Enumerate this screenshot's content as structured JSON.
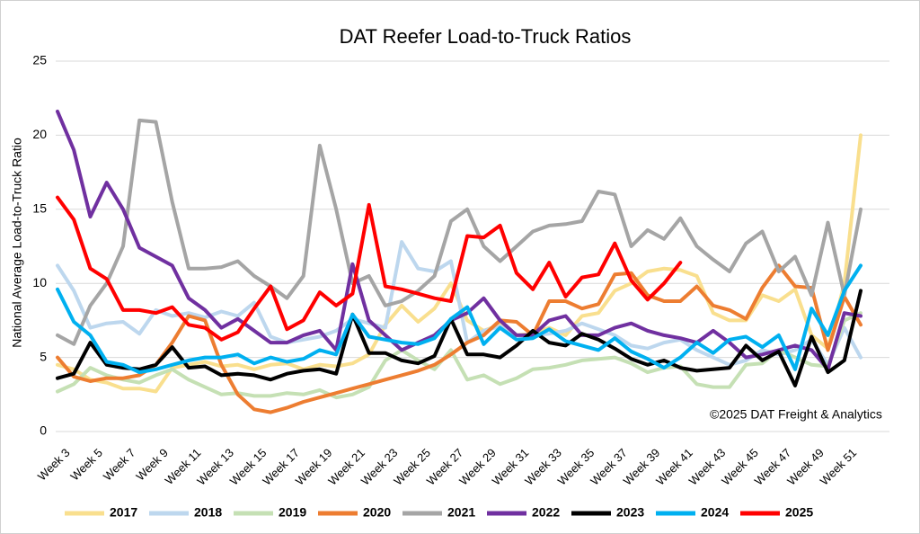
{
  "chart_data": {
    "type": "line",
    "title": "DAT Reefer Load-to-Truck Ratios",
    "y_label": "National Average Load-to-Truck Ratio",
    "annotation": "©2025 DAT Freight & Analytics",
    "categories": [
      "Week 3",
      null,
      "Week 5",
      null,
      "Week 7",
      null,
      "Week 9",
      null,
      "Week 11",
      null,
      "Week 13",
      null,
      "Week 15",
      null,
      "Week 17",
      null,
      "Week 19",
      null,
      "Week 21",
      null,
      "Week 23",
      null,
      "Week 25",
      null,
      "Week 27",
      null,
      "Week 29",
      null,
      "Week 31",
      null,
      "Week 33",
      null,
      "Week 35",
      null,
      "Week 37",
      null,
      "Week 39",
      null,
      "Week 41",
      null,
      "Week 43",
      null,
      "Week 45",
      null,
      "Week 47",
      null,
      "Week 49",
      null,
      "Week 51",
      null
    ],
    "ylim": [
      0,
      25
    ],
    "yticks": [
      0,
      5,
      10,
      15,
      20,
      25
    ],
    "grid": true,
    "legend": "bottom",
    "series": [
      {
        "name": "2017",
        "color": "#f9df8e",
        "values": [
          4.5,
          4.2,
          3.5,
          3.3,
          2.9,
          2.9,
          2.7,
          4.3,
          4.5,
          4.7,
          4.4,
          4.5,
          4.2,
          4.5,
          4.6,
          4.2,
          4.5,
          4.4,
          4.6,
          5.2,
          7.2,
          8.5,
          7.4,
          8.3,
          10,
          7.5,
          6.8,
          7.2,
          6.5,
          6.6,
          7,
          6.5,
          7.8,
          8,
          9.5,
          10,
          10.8,
          11,
          10.9,
          10.5,
          8,
          7.5,
          7.5,
          9.2,
          8.8,
          9.6,
          6.5,
          5.6,
          10,
          20
        ]
      },
      {
        "name": "2018",
        "color": "#bdd7ee",
        "values": [
          11.2,
          9.5,
          7,
          7.3,
          7.4,
          6.6,
          8.2,
          7.8,
          8,
          7.7,
          8.1,
          7.8,
          8.7,
          6.4,
          6,
          6.2,
          6.4,
          6.8,
          7.6,
          7.3,
          7,
          12.8,
          11,
          10.8,
          11.5,
          6,
          6.8,
          7.1,
          6.5,
          6.5,
          6.6,
          6.8,
          7.3,
          6.9,
          6.5,
          5.8,
          5.6,
          6,
          6.2,
          5.5,
          5,
          4.5,
          4.8,
          5.5,
          5.2,
          5.5,
          6.2,
          4.5,
          7,
          5
        ]
      },
      {
        "name": "2019",
        "color": "#c5e0b4",
        "values": [
          2.7,
          3.2,
          4.3,
          3.8,
          3.5,
          3.3,
          3.8,
          4.2,
          3.5,
          3,
          2.5,
          2.6,
          2.4,
          2.4,
          2.6,
          2.5,
          2.8,
          2.3,
          2.5,
          3,
          4.8,
          5.5,
          4.8,
          4.2,
          5.5,
          3.5,
          3.8,
          3.2,
          3.6,
          4.2,
          4.3,
          4.5,
          4.8,
          4.9,
          5,
          4.6,
          4,
          4.3,
          4.4,
          3.2,
          3,
          3,
          4.5,
          4.6,
          5.5,
          5,
          4.5,
          4.4,
          7.5,
          8
        ]
      },
      {
        "name": "2020",
        "color": "#ed7d31",
        "values": [
          5,
          3.7,
          3.4,
          3.6,
          3.6,
          3.8,
          4.5,
          6,
          7.8,
          7.5,
          4.5,
          2.5,
          1.5,
          1.3,
          1.6,
          2,
          2.3,
          2.6,
          2.9,
          3.2,
          3.5,
          3.8,
          4.1,
          4.5,
          5.2,
          6,
          6.5,
          7.5,
          7.4,
          6.5,
          8.8,
          8.8,
          8.3,
          8.6,
          10.6,
          10.7,
          9.2,
          8.8,
          8.8,
          9.8,
          8.5,
          8.2,
          7.6,
          9.7,
          11.2,
          9.8,
          9.7,
          5.5,
          9.1,
          7.2
        ]
      },
      {
        "name": "2021",
        "color": "#a5a5a5",
        "values": [
          6.5,
          5.9,
          8.5,
          10,
          12.5,
          21,
          20.9,
          15.5,
          11,
          11,
          11.1,
          11.5,
          10.5,
          9.8,
          9,
          10.5,
          19.3,
          15,
          10,
          10.5,
          8.5,
          8.8,
          9.5,
          10.5,
          14.2,
          15,
          12.5,
          11.5,
          12.5,
          13.5,
          13.9,
          14,
          14.2,
          16.2,
          16,
          12.5,
          13.6,
          13,
          14.4,
          12.5,
          11.6,
          10.8,
          12.7,
          13.5,
          10.8,
          11.8,
          9.2,
          14.1,
          9.2,
          15
        ]
      },
      {
        "name": "2022",
        "color": "#7030a0",
        "values": [
          21.6,
          19,
          14.5,
          16.8,
          15,
          12.4,
          11.8,
          11.2,
          9,
          8.2,
          7,
          7.6,
          6.8,
          6,
          6,
          6.5,
          6.8,
          5.5,
          11.3,
          7.5,
          6.5,
          5.5,
          6,
          6.5,
          7.5,
          8,
          9,
          7.5,
          6.5,
          6.5,
          7.5,
          7.8,
          6.5,
          6.5,
          7,
          7.3,
          6.8,
          6.5,
          6.3,
          6,
          6.8,
          6,
          5,
          5.2,
          5.5,
          5.8,
          5.5,
          4.2,
          8,
          7.8
        ]
      },
      {
        "name": "2023",
        "color": "#000000",
        "values": [
          3.6,
          3.9,
          6,
          4.5,
          4.3,
          4.2,
          4.5,
          5.7,
          4.3,
          4.4,
          3.8,
          3.9,
          3.8,
          3.5,
          3.9,
          4.1,
          4.2,
          3.9,
          7.9,
          5.3,
          5.3,
          4.8,
          4.6,
          5.1,
          7.6,
          5.2,
          5.2,
          5,
          5.8,
          6.8,
          6,
          5.8,
          6.6,
          6.2,
          5.6,
          4.9,
          4.5,
          4.8,
          4.3,
          4.1,
          4.2,
          4.3,
          5.8,
          4.8,
          5.4,
          3.1,
          6.4,
          4,
          4.8,
          9.5
        ]
      },
      {
        "name": "2024",
        "color": "#00b0f0",
        "values": [
          9.6,
          7.4,
          6.5,
          4.7,
          4.5,
          4,
          4.2,
          4.5,
          4.8,
          5,
          5,
          5.2,
          4.6,
          5,
          4.7,
          4.9,
          5.5,
          5.2,
          7.9,
          6.4,
          6.2,
          6,
          5.9,
          6.3,
          7.6,
          8.4,
          5.9,
          7,
          6.2,
          6.3,
          6.9,
          6.1,
          5.8,
          5.5,
          6.3,
          5.4,
          4.9,
          4.3,
          5,
          6,
          5.3,
          6.2,
          6.4,
          5.7,
          6.5,
          4.2,
          8.3,
          6.5,
          9.5,
          11.2
        ]
      },
      {
        "name": "2025",
        "color": "#ff0000",
        "values": [
          15.8,
          14.3,
          11,
          10.3,
          8.2,
          8.2,
          8,
          8.4,
          7.2,
          7,
          6.2,
          6.7,
          8.3,
          9.8,
          6.9,
          7.5,
          9.4,
          8.5,
          9.3,
          15.3,
          9.8,
          9.6,
          9.3,
          9,
          8.8,
          13.2,
          13.1,
          13.9,
          10.7,
          9.6,
          11.4,
          9.1,
          10.4,
          10.6,
          12.7,
          10.2,
          8.9,
          10,
          11.4,
          null,
          null,
          null,
          null,
          null,
          null,
          null,
          null,
          null,
          null,
          null
        ]
      }
    ]
  }
}
